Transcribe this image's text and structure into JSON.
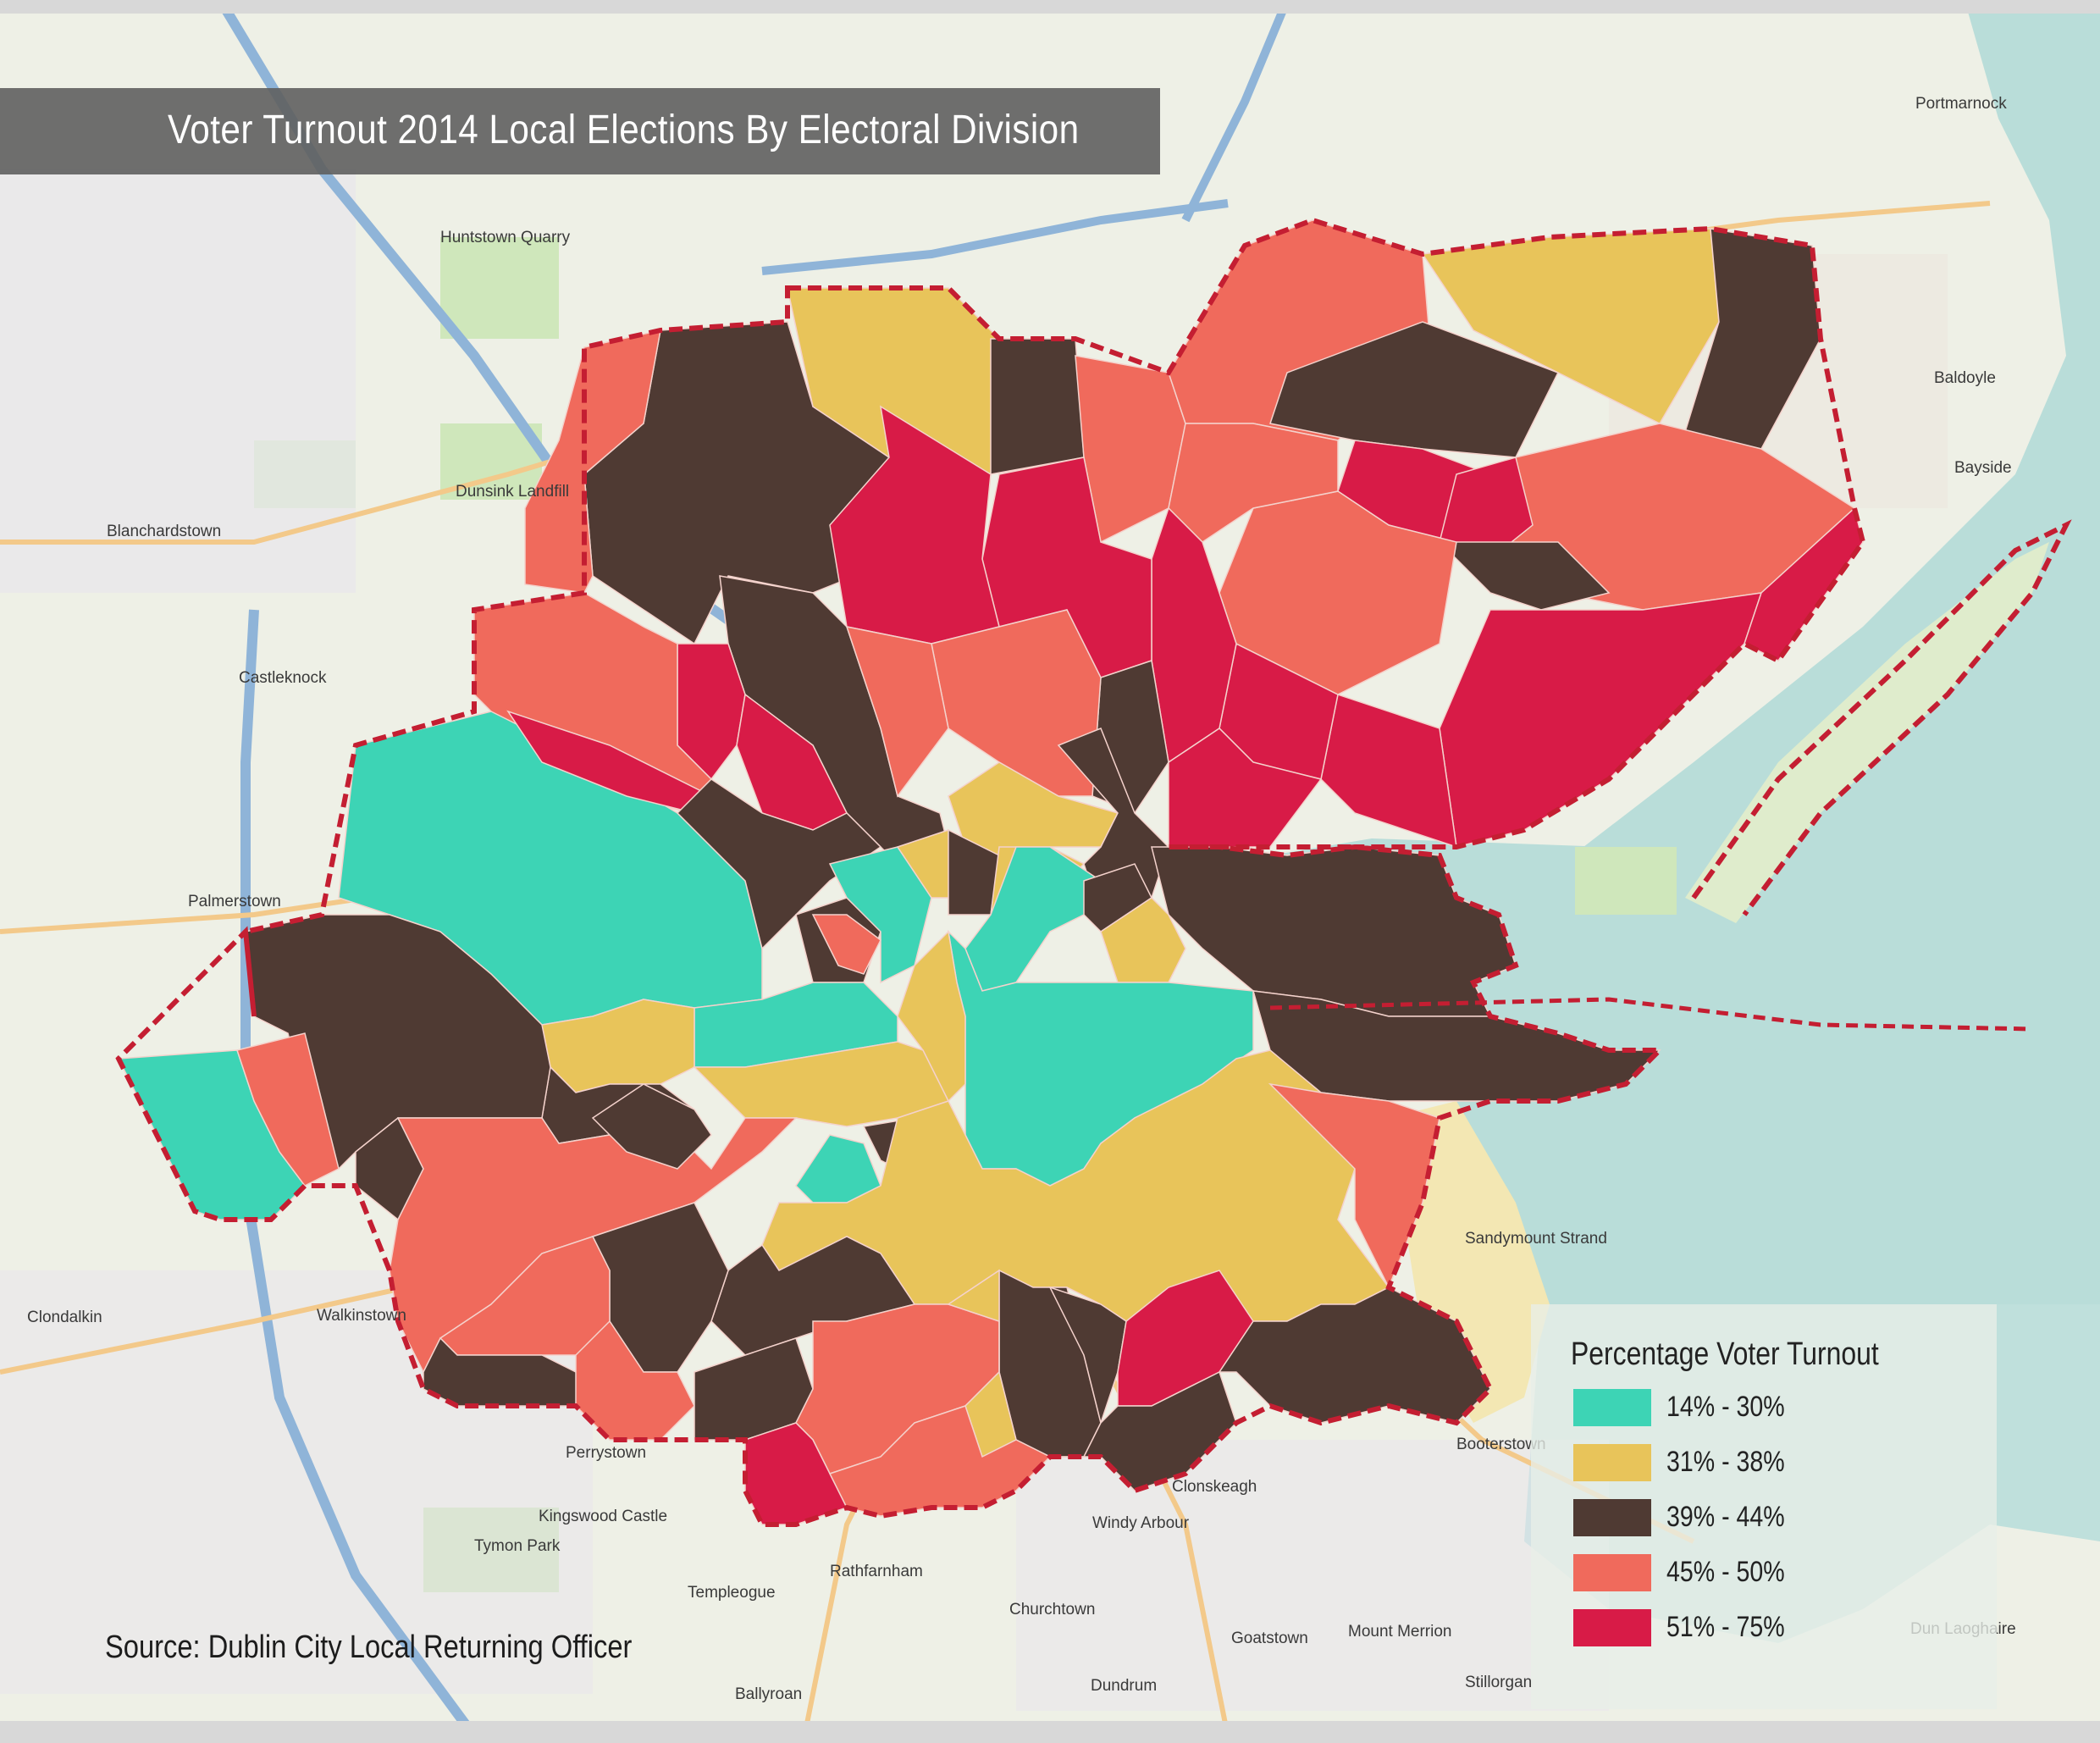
{
  "title": "Voter Turnout 2014 Local Elections By Electoral Division",
  "source": "Source: Dublin City Local Returning Officer",
  "legend": {
    "title": "Percentage Voter Turnout",
    "items": [
      {
        "label": "14% - 30%",
        "color": "#3dd4b5"
      },
      {
        "label": "31% - 38%",
        "color": "#e8c45a"
      },
      {
        "label": "39% - 44%",
        "color": "#4f3a33"
      },
      {
        "label": "45% - 50%",
        "color": "#f06a5c"
      },
      {
        "label": "51% - 75%",
        "color": "#d81b47"
      }
    ]
  },
  "places": {
    "huntstown_quarry": "Huntstown Quarry",
    "blanchardstown": "Blanchardstown",
    "castleknock": "Castleknock",
    "palmerstown": "Palmerstown",
    "clondalkin": "Clondalkin",
    "walkinstown": "Walkinstown",
    "perrystown": "Perrystown",
    "templeogue": "Templeogue",
    "churchtown": "Churchtown",
    "dundrum": "Dundrum",
    "windy_arbour": "Windy Arbour",
    "clonskeagh": "Clonskeagh",
    "booterstown": "Booterstown",
    "mount_merrion": "Mount Merrion",
    "goatstown": "Goatstown",
    "stillorgan": "Stillorgan",
    "dun_laoghaire": "Dun Laoghaire",
    "baldoyle": "Baldoyle",
    "bayside": "Bayside",
    "portmarnock": "Portmarnock",
    "sandymount_strand": "Sandymount Strand",
    "ballyroan": "Ballyroan",
    "dunsink_landfill": "Dunsink Landfill",
    "rathfarnham": "Rathfarnham",
    "kingswood_castle": "Kingswood Castle",
    "tymon_park": "Tymon Park"
  },
  "colors": {
    "land": "#eef0e6",
    "water": "#b9ddd9",
    "boundary": "#c41e32",
    "motorway": "#8fb4d8",
    "trunk": "#f3c98a"
  }
}
